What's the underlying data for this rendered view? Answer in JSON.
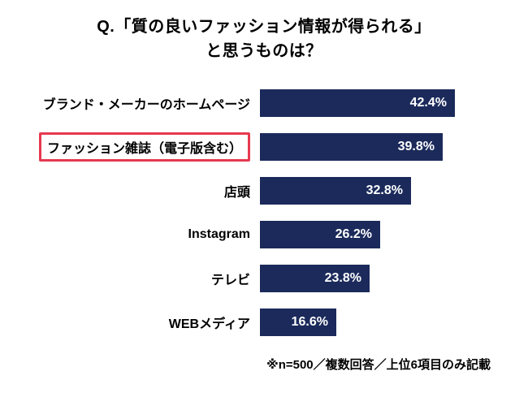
{
  "title": {
    "line1": "Q.「質の良いファッション情報が得られる」",
    "line2": "と思うものは？"
  },
  "footnote": "※n=500／複数回答／上位6項目のみ記載",
  "colors": {
    "bar": "#1b2a5b",
    "highlight_box": "#e63950",
    "value_text": "#ffffff",
    "label_text": "#000000"
  },
  "chart_data": {
    "type": "bar",
    "orientation": "horizontal",
    "title": "Q.「質の良いファッション情報が得られる」と思うものは？",
    "categories": [
      "ブランド・メーカーのホームページ",
      "ファッション雑誌（電子版含む）",
      "店頭",
      "Instagram",
      "テレビ",
      "WEBメディア"
    ],
    "values": [
      42.4,
      39.8,
      32.8,
      26.2,
      23.8,
      16.6
    ],
    "value_labels": [
      "42.4%",
      "39.8%",
      "32.8%",
      "26.2%",
      "23.8%",
      "16.6%"
    ],
    "highlighted_category_index": 1,
    "highlight_note": "red box outline around second category label",
    "xlim": [
      0,
      45
    ],
    "grid": false,
    "legend": false,
    "annotation": "※n=500／複数回答／上位6項目のみ記載"
  }
}
